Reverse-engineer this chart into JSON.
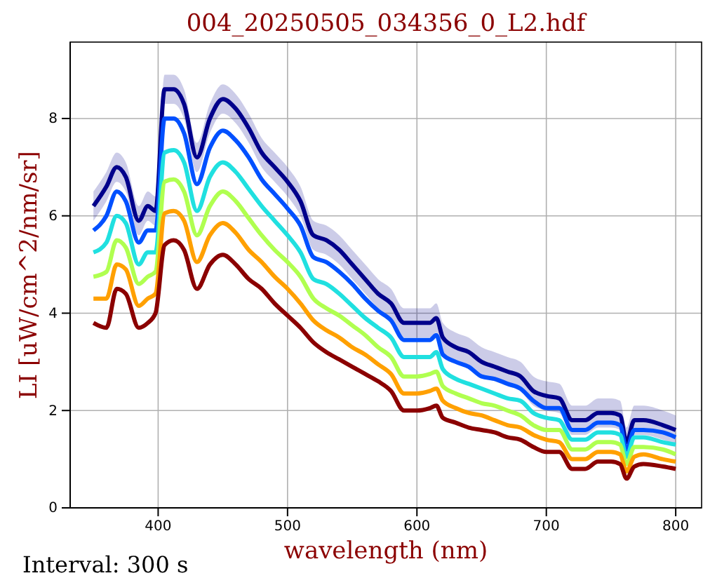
{
  "chart_data": {
    "type": "line",
    "title": "004_20250505_034356_0_L2.hdf",
    "xlabel": "wavelength (nm)",
    "ylabel": "LI [uW/cm^2/nm/sr]",
    "annotations": [
      "Interval: 300 s"
    ],
    "x": [
      350,
      360,
      368,
      375,
      385,
      392,
      398,
      405,
      412,
      420,
      430,
      440,
      450,
      460,
      470,
      480,
      490,
      500,
      510,
      520,
      530,
      540,
      550,
      560,
      570,
      580,
      590,
      600,
      610,
      615,
      620,
      630,
      640,
      650,
      660,
      670,
      680,
      690,
      700,
      710,
      720,
      730,
      740,
      750,
      757,
      762,
      768,
      775,
      790,
      800
    ],
    "xlim": [
      332,
      820
    ],
    "ylim": [
      0,
      9.57
    ],
    "xticks": [
      400,
      500,
      600,
      700,
      800
    ],
    "yticks": [
      0,
      2,
      4,
      6,
      8
    ],
    "grid": true,
    "line_style": "solid",
    "marker": "none",
    "series": [
      {
        "color": "#00008b",
        "values": [
          6.2,
          6.6,
          7.0,
          6.8,
          5.9,
          6.2,
          6.1,
          8.6,
          8.6,
          8.3,
          7.2,
          8.0,
          8.4,
          8.2,
          7.8,
          7.3,
          7.0,
          6.7,
          6.3,
          5.6,
          5.5,
          5.3,
          5.0,
          4.7,
          4.4,
          4.2,
          3.8,
          3.8,
          3.8,
          3.9,
          3.5,
          3.3,
          3.2,
          3.0,
          2.9,
          2.8,
          2.7,
          2.4,
          2.3,
          2.25,
          1.8,
          1.8,
          1.95,
          1.95,
          1.9,
          1.35,
          1.8,
          1.8,
          1.7,
          1.6
        ],
        "upper": [
          6.5,
          6.9,
          7.3,
          7.1,
          6.2,
          6.5,
          6.4,
          8.9,
          8.9,
          8.6,
          7.5,
          8.3,
          8.7,
          8.5,
          8.1,
          7.6,
          7.3,
          7.0,
          6.6,
          5.9,
          5.8,
          5.6,
          5.3,
          5.0,
          4.7,
          4.5,
          4.1,
          4.1,
          4.1,
          4.2,
          3.8,
          3.6,
          3.5,
          3.3,
          3.2,
          3.1,
          3.0,
          2.7,
          2.6,
          2.55,
          2.1,
          2.1,
          2.25,
          2.25,
          2.2,
          1.65,
          2.1,
          2.1,
          2.0,
          1.9
        ],
        "lower": [
          5.9,
          6.3,
          6.7,
          6.5,
          5.6,
          5.9,
          5.8,
          8.3,
          8.3,
          8.0,
          6.9,
          7.7,
          8.1,
          7.9,
          7.5,
          7.0,
          6.7,
          6.4,
          6.0,
          5.3,
          5.2,
          5.0,
          4.7,
          4.4,
          4.1,
          3.9,
          3.5,
          3.5,
          3.5,
          3.6,
          3.2,
          3.0,
          2.9,
          2.7,
          2.6,
          2.5,
          2.4,
          2.1,
          2.0,
          1.95,
          1.5,
          1.5,
          1.65,
          1.65,
          1.6,
          1.05,
          1.5,
          1.5,
          1.4,
          1.3
        ]
      },
      {
        "color": "#0050ff",
        "values": [
          5.7,
          6.0,
          6.5,
          6.3,
          5.45,
          5.7,
          5.7,
          8.0,
          8.0,
          7.7,
          6.65,
          7.4,
          7.75,
          7.55,
          7.2,
          6.75,
          6.45,
          6.15,
          5.8,
          5.15,
          5.05,
          4.85,
          4.6,
          4.3,
          4.05,
          3.85,
          3.45,
          3.45,
          3.45,
          3.55,
          3.15,
          3.0,
          2.9,
          2.7,
          2.65,
          2.55,
          2.45,
          2.2,
          2.05,
          2.05,
          1.6,
          1.6,
          1.75,
          1.75,
          1.7,
          1.2,
          1.6,
          1.6,
          1.55,
          1.45
        ]
      },
      {
        "color": "#20e0e0",
        "values": [
          5.25,
          5.45,
          6.0,
          5.85,
          5.0,
          5.25,
          5.25,
          7.3,
          7.35,
          7.1,
          6.1,
          6.8,
          7.1,
          6.9,
          6.55,
          6.2,
          5.9,
          5.6,
          5.25,
          4.7,
          4.6,
          4.4,
          4.15,
          3.9,
          3.7,
          3.5,
          3.1,
          3.1,
          3.1,
          3.2,
          2.85,
          2.65,
          2.55,
          2.45,
          2.35,
          2.25,
          2.2,
          1.95,
          1.85,
          1.8,
          1.4,
          1.4,
          1.55,
          1.55,
          1.5,
          1.05,
          1.45,
          1.45,
          1.35,
          1.3
        ]
      },
      {
        "color": "#b0ff50",
        "values": [
          4.75,
          4.85,
          5.5,
          5.35,
          4.6,
          4.75,
          4.85,
          6.7,
          6.75,
          6.5,
          5.6,
          6.2,
          6.5,
          6.3,
          5.95,
          5.6,
          5.3,
          5.05,
          4.75,
          4.3,
          4.1,
          3.95,
          3.75,
          3.55,
          3.3,
          3.1,
          2.7,
          2.7,
          2.75,
          2.8,
          2.5,
          2.35,
          2.25,
          2.15,
          2.1,
          2.0,
          1.9,
          1.7,
          1.6,
          1.6,
          1.2,
          1.2,
          1.35,
          1.35,
          1.3,
          0.9,
          1.25,
          1.25,
          1.2,
          1.1
        ]
      },
      {
        "color": "#ffa000",
        "values": [
          4.3,
          4.3,
          5.0,
          4.9,
          4.15,
          4.3,
          4.4,
          6.05,
          6.1,
          5.9,
          5.05,
          5.6,
          5.85,
          5.65,
          5.3,
          5.05,
          4.75,
          4.5,
          4.2,
          3.85,
          3.65,
          3.5,
          3.3,
          3.15,
          2.95,
          2.75,
          2.35,
          2.35,
          2.4,
          2.45,
          2.2,
          2.05,
          1.95,
          1.9,
          1.8,
          1.7,
          1.65,
          1.5,
          1.4,
          1.35,
          1.0,
          1.0,
          1.15,
          1.15,
          1.1,
          0.75,
          1.05,
          1.1,
          1.0,
          0.95
        ]
      },
      {
        "color": "#8b0000",
        "values": [
          3.8,
          3.7,
          4.5,
          4.4,
          3.7,
          3.8,
          4.0,
          5.4,
          5.5,
          5.3,
          4.5,
          5.0,
          5.2,
          5.0,
          4.7,
          4.5,
          4.2,
          3.95,
          3.7,
          3.4,
          3.2,
          3.05,
          2.9,
          2.75,
          2.6,
          2.4,
          2.0,
          2.0,
          2.05,
          2.1,
          1.85,
          1.75,
          1.65,
          1.6,
          1.55,
          1.45,
          1.4,
          1.25,
          1.15,
          1.15,
          0.8,
          0.8,
          0.95,
          0.95,
          0.9,
          0.6,
          0.85,
          0.9,
          0.85,
          0.8
        ]
      }
    ]
  }
}
